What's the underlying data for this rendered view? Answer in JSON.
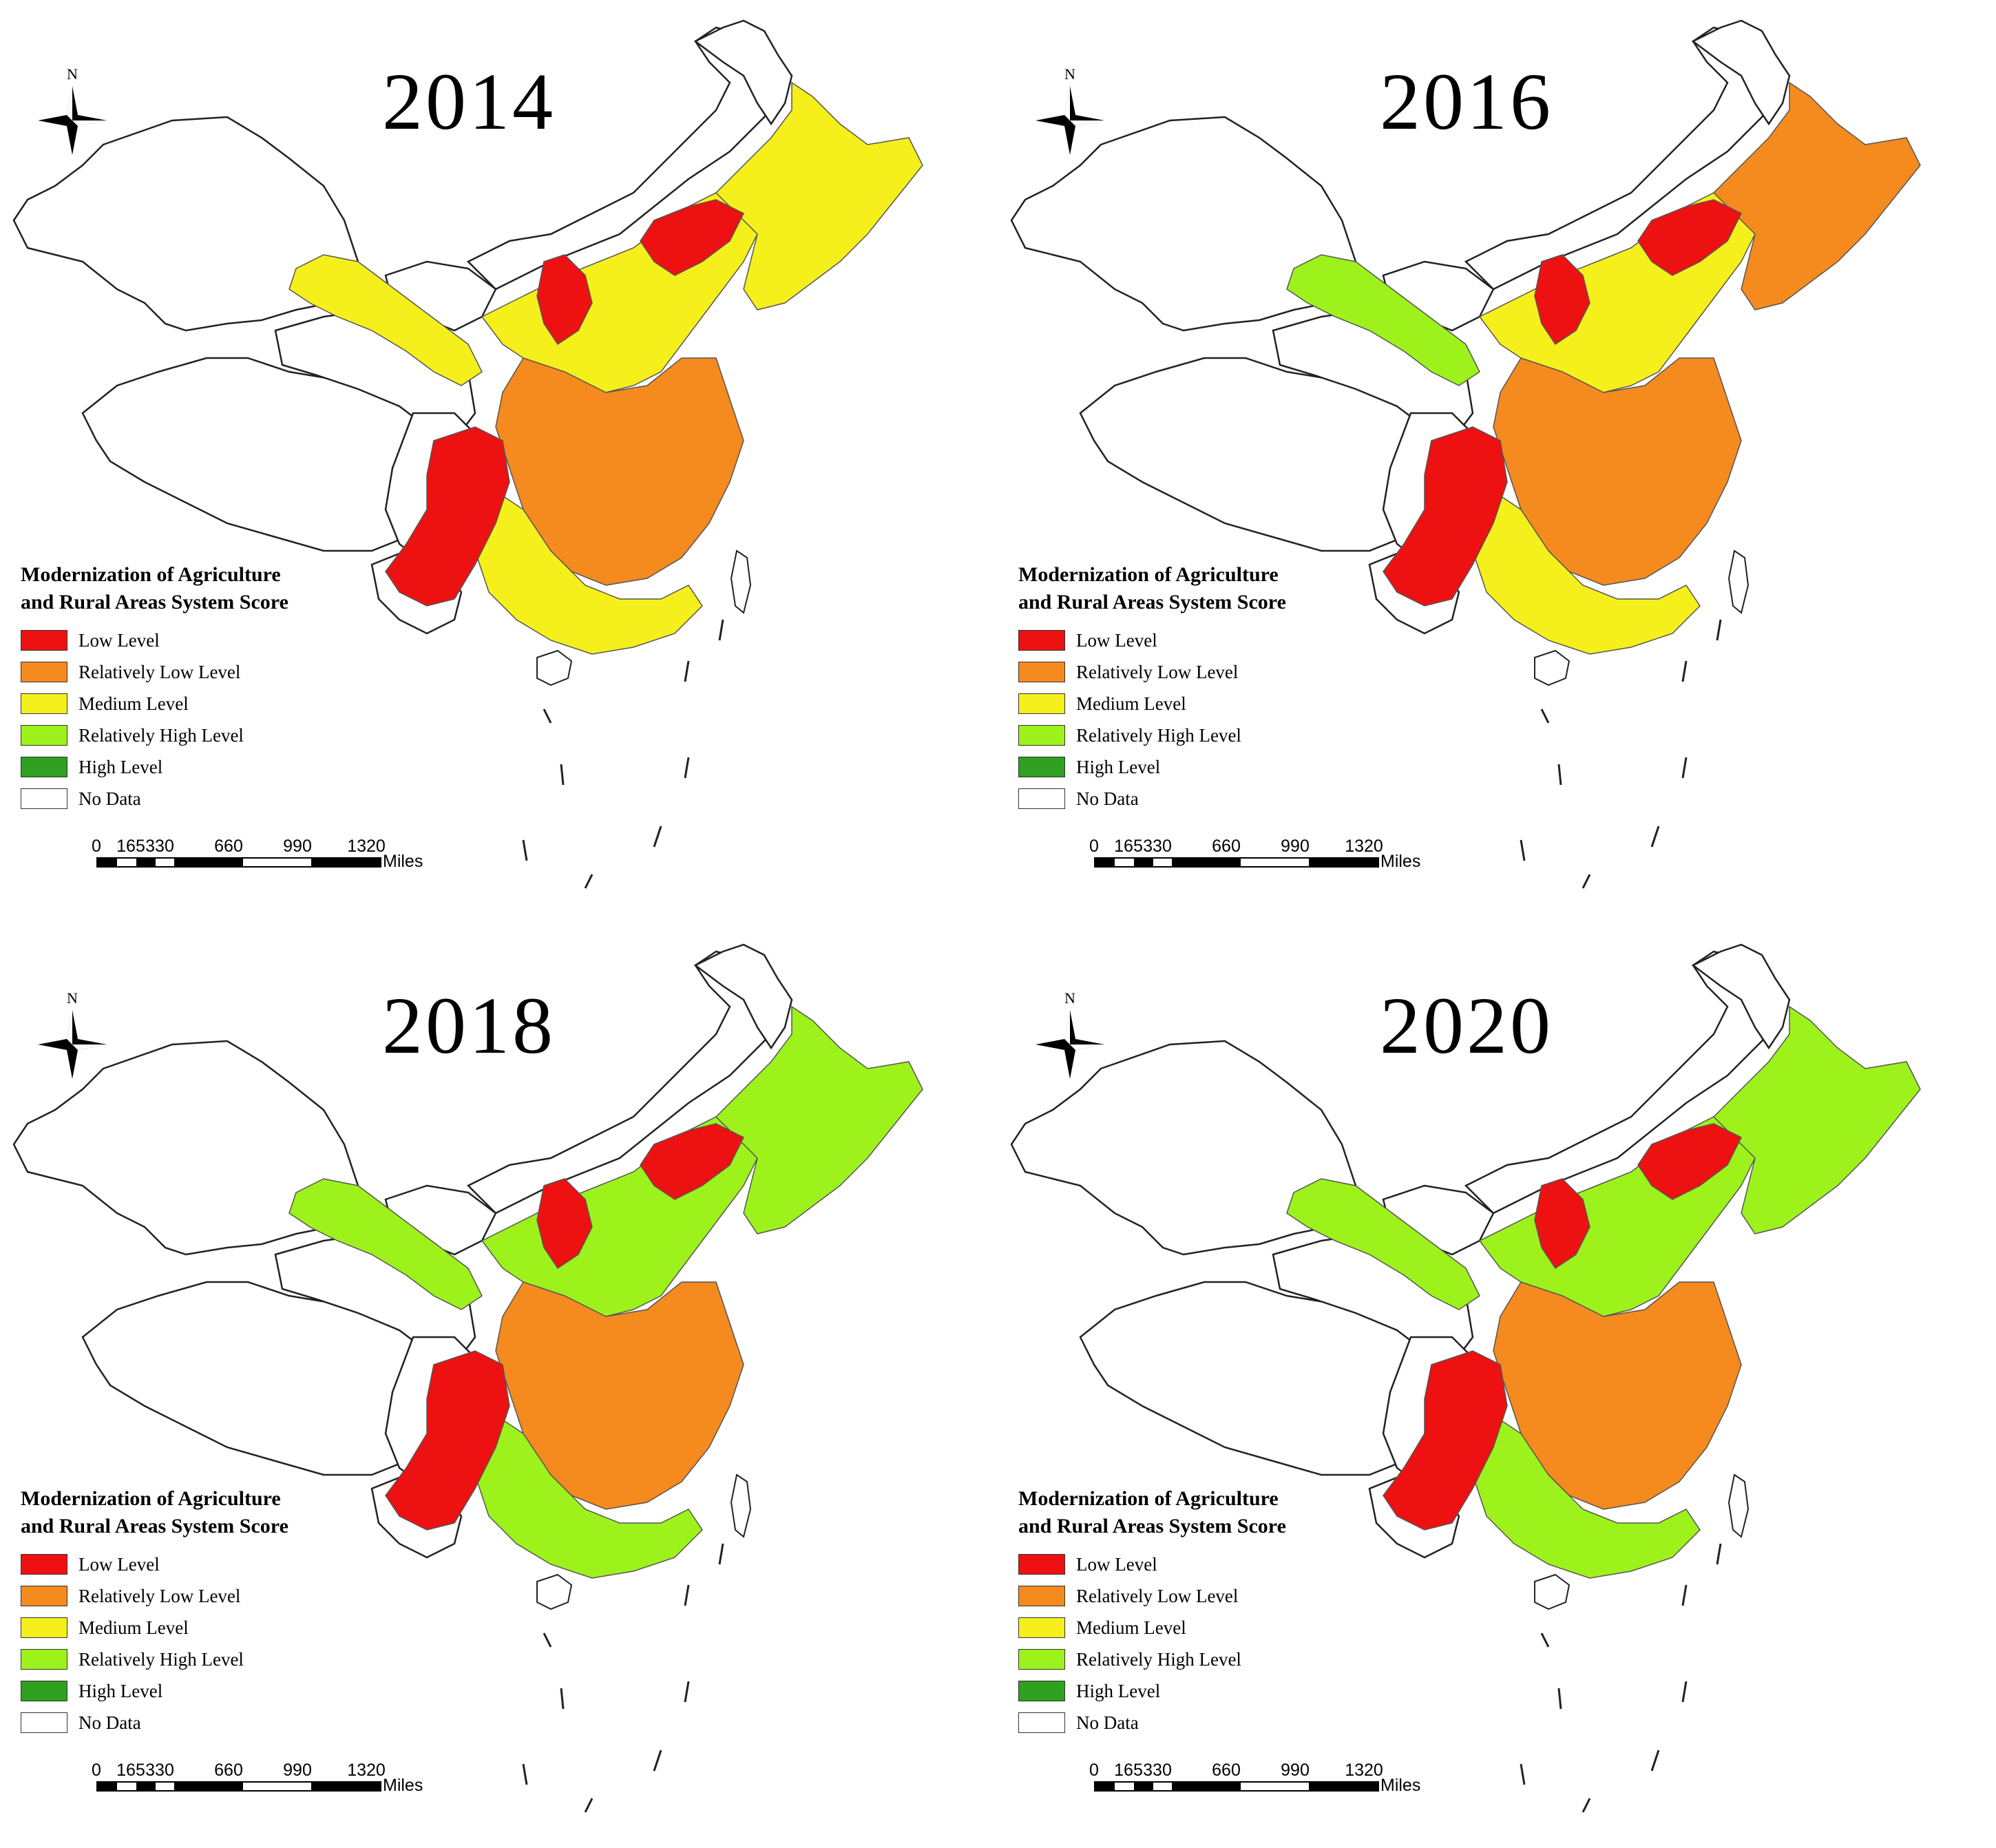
{
  "colors": {
    "low": "#ee1111",
    "relatively_low": "#f58a1f",
    "medium": "#f5f01c",
    "relatively_high": "#9ef21c",
    "high": "#2fa020",
    "no_data": "#ffffff"
  },
  "legend": {
    "title_line1": "Modernization of Agriculture",
    "title_line2": "and Rural Areas System Score",
    "items": [
      {
        "key": "low",
        "label": "Low Level"
      },
      {
        "key": "relatively_low",
        "label": "Relatively Low Level"
      },
      {
        "key": "medium",
        "label": "Medium Level"
      },
      {
        "key": "relatively_high",
        "label": "Relatively High Level"
      },
      {
        "key": "high",
        "label": "High Level"
      },
      {
        "key": "no_data",
        "label": "No Data"
      }
    ]
  },
  "north_arrow": {
    "label": "N",
    "icon": "north-arrow-icon"
  },
  "scale_bar": {
    "ticks": [
      "0",
      "165",
      "330",
      "660",
      "990",
      "1320"
    ],
    "unit": "Miles"
  },
  "panels": [
    {
      "year": "2014"
    },
    {
      "year": "2016"
    },
    {
      "year": "2018"
    },
    {
      "year": "2020"
    }
  ]
}
